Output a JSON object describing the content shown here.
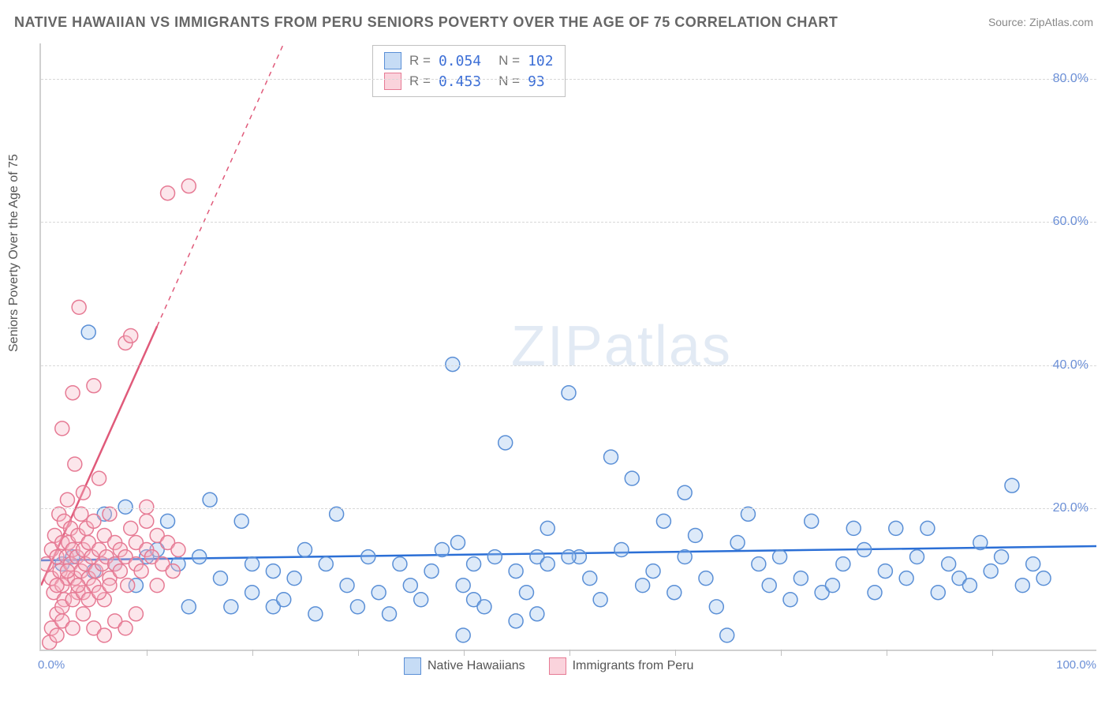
{
  "title": "NATIVE HAWAIIAN VS IMMIGRANTS FROM PERU SENIORS POVERTY OVER THE AGE OF 75 CORRELATION CHART",
  "source": "Source: ZipAtlas.com",
  "ylabel": "Seniors Poverty Over the Age of 75",
  "watermark_a": "ZIP",
  "watermark_b": "atlas",
  "chart": {
    "type": "scatter",
    "xlim": [
      0,
      100
    ],
    "ylim": [
      0,
      85
    ],
    "y_gridlines": [
      20,
      40,
      60,
      80
    ],
    "y_tick_labels": [
      "20.0%",
      "40.0%",
      "60.0%",
      "80.0%"
    ],
    "x_tick_labels": {
      "left": "0.0%",
      "right": "100.0%"
    },
    "x_tick_marks": [
      10,
      20,
      30,
      40,
      50,
      60,
      70,
      80,
      90
    ],
    "grid_color": "#d8d8d8",
    "axis_color": "#d0d0d0",
    "axis_tick_label_color": "#6b8fd6",
    "background_color": "#ffffff",
    "marker_radius": 9,
    "marker_stroke_width": 1.5,
    "marker_fill_opacity": 0.35,
    "regression_line_width": 2.5
  },
  "series": [
    {
      "key": "native_hawaiians",
      "label": "Native Hawaiians",
      "color_fill": "#9ec3ef",
      "color_stroke": "#5a8fd6",
      "R": "0.054",
      "N": "102",
      "regression": {
        "x1": 0,
        "y1": 12.5,
        "x2": 100,
        "y2": 14.5,
        "color": "#2b6fd6"
      },
      "points": [
        [
          2,
          12
        ],
        [
          3,
          13
        ],
        [
          4.5,
          44.5
        ],
        [
          5,
          11
        ],
        [
          6,
          19
        ],
        [
          7,
          12
        ],
        [
          8,
          20
        ],
        [
          9,
          9
        ],
        [
          10,
          13
        ],
        [
          11,
          14
        ],
        [
          12,
          18
        ],
        [
          13,
          12
        ],
        [
          14,
          6
        ],
        [
          15,
          13
        ],
        [
          16,
          21
        ],
        [
          17,
          10
        ],
        [
          18,
          6
        ],
        [
          19,
          18
        ],
        [
          20,
          8
        ],
        [
          20,
          12
        ],
        [
          22,
          6
        ],
        [
          22,
          11
        ],
        [
          23,
          7
        ],
        [
          24,
          10
        ],
        [
          25,
          14
        ],
        [
          26,
          5
        ],
        [
          27,
          12
        ],
        [
          28,
          19
        ],
        [
          29,
          9
        ],
        [
          30,
          6
        ],
        [
          31,
          13
        ],
        [
          32,
          8
        ],
        [
          33,
          5
        ],
        [
          34,
          12
        ],
        [
          35,
          9
        ],
        [
          36,
          7
        ],
        [
          37,
          11
        ],
        [
          38,
          14
        ],
        [
          39,
          40
        ],
        [
          40,
          2
        ],
        [
          40,
          9
        ],
        [
          41,
          7
        ],
        [
          41,
          12
        ],
        [
          42,
          6
        ],
        [
          43,
          13
        ],
        [
          44,
          29
        ],
        [
          45,
          4
        ],
        [
          45,
          11
        ],
        [
          46,
          8
        ],
        [
          47,
          5
        ],
        [
          47,
          13
        ],
        [
          48,
          12
        ],
        [
          48,
          17
        ],
        [
          50,
          36
        ],
        [
          51,
          13
        ],
        [
          52,
          10
        ],
        [
          53,
          7
        ],
        [
          54,
          27
        ],
        [
          55,
          14
        ],
        [
          56,
          24
        ],
        [
          57,
          9
        ],
        [
          58,
          11
        ],
        [
          59,
          18
        ],
        [
          60,
          8
        ],
        [
          61,
          13
        ],
        [
          61,
          22
        ],
        [
          62,
          16
        ],
        [
          63,
          10
        ],
        [
          64,
          6
        ],
        [
          65,
          2
        ],
        [
          66,
          15
        ],
        [
          67,
          19
        ],
        [
          68,
          12
        ],
        [
          69,
          9
        ],
        [
          70,
          13
        ],
        [
          71,
          7
        ],
        [
          72,
          10
        ],
        [
          73,
          18
        ],
        [
          74,
          8
        ],
        [
          75,
          9
        ],
        [
          76,
          12
        ],
        [
          77,
          17
        ],
        [
          78,
          14
        ],
        [
          79,
          8
        ],
        [
          80,
          11
        ],
        [
          81,
          17
        ],
        [
          82,
          10
        ],
        [
          83,
          13
        ],
        [
          84,
          17
        ],
        [
          85,
          8
        ],
        [
          86,
          12
        ],
        [
          87,
          10
        ],
        [
          88,
          9
        ],
        [
          89,
          15
        ],
        [
          90,
          11
        ],
        [
          91,
          13
        ],
        [
          92,
          23
        ],
        [
          93,
          9
        ],
        [
          94,
          12
        ],
        [
          95,
          10
        ],
        [
          39.5,
          15
        ],
        [
          50,
          13
        ]
      ]
    },
    {
      "key": "immigrants_peru",
      "label": "Immigrants from Peru",
      "color_fill": "#f6b8c5",
      "color_stroke": "#e67a94",
      "R": "0.453",
      "N": "93",
      "regression": {
        "x1": 0,
        "y1": 9,
        "x2": 23,
        "y2": 85,
        "color": "#e05a7a",
        "dashed_after_x": 11
      },
      "points": [
        [
          0.5,
          12
        ],
        [
          0.8,
          1
        ],
        [
          1,
          10
        ],
        [
          1,
          14
        ],
        [
          1.2,
          8
        ],
        [
          1.3,
          16
        ],
        [
          1.5,
          5
        ],
        [
          1.5,
          13
        ],
        [
          1.7,
          19
        ],
        [
          1.8,
          11
        ],
        [
          2,
          9
        ],
        [
          2,
          15
        ],
        [
          2,
          31
        ],
        [
          2.2,
          7
        ],
        [
          2.2,
          18
        ],
        [
          2.4,
          13
        ],
        [
          2.5,
          10
        ],
        [
          2.5,
          21
        ],
        [
          2.6,
          15
        ],
        [
          2.8,
          12
        ],
        [
          2.8,
          17
        ],
        [
          3,
          36
        ],
        [
          3,
          14
        ],
        [
          3.2,
          10
        ],
        [
          3.2,
          26
        ],
        [
          3.4,
          13
        ],
        [
          3.5,
          8
        ],
        [
          3.5,
          16
        ],
        [
          3.6,
          48
        ],
        [
          3.8,
          11
        ],
        [
          3.8,
          19
        ],
        [
          4,
          14
        ],
        [
          4,
          22
        ],
        [
          4.2,
          12
        ],
        [
          4.3,
          17
        ],
        [
          4.5,
          10
        ],
        [
          4.5,
          15
        ],
        [
          4.8,
          13
        ],
        [
          5,
          9
        ],
        [
          5,
          18
        ],
        [
          5,
          37
        ],
        [
          5.2,
          11
        ],
        [
          5.5,
          14
        ],
        [
          5.5,
          24
        ],
        [
          5.8,
          12
        ],
        [
          6,
          7
        ],
        [
          6,
          16
        ],
        [
          6.2,
          13
        ],
        [
          6.5,
          10
        ],
        [
          6.5,
          19
        ],
        [
          7,
          12
        ],
        [
          7,
          15
        ],
        [
          7.5,
          11
        ],
        [
          7.5,
          14
        ],
        [
          8,
          43
        ],
        [
          8,
          13
        ],
        [
          8.2,
          9
        ],
        [
          8.5,
          17
        ],
        [
          8.5,
          44
        ],
        [
          9,
          12
        ],
        [
          9,
          15
        ],
        [
          9.5,
          11
        ],
        [
          10,
          14
        ],
        [
          10,
          18
        ],
        [
          10,
          20
        ],
        [
          10.5,
          13
        ],
        [
          11,
          9
        ],
        [
          11,
          16
        ],
        [
          11.5,
          12
        ],
        [
          12,
          15
        ],
        [
          12,
          64
        ],
        [
          12.5,
          11
        ],
        [
          13,
          14
        ],
        [
          14,
          65
        ],
        [
          1,
          3
        ],
        [
          1.5,
          2
        ],
        [
          2,
          4
        ],
        [
          3,
          3
        ],
        [
          4,
          5
        ],
        [
          5,
          3
        ],
        [
          6,
          2
        ],
        [
          7,
          4
        ],
        [
          8,
          3
        ],
        [
          9,
          5
        ],
        [
          2,
          6
        ],
        [
          3,
          7
        ],
        [
          4,
          8
        ],
        [
          1.5,
          9
        ],
        [
          2.5,
          11
        ],
        [
          3.5,
          9
        ],
        [
          4.5,
          7
        ],
        [
          5.5,
          8
        ],
        [
          6.5,
          9
        ]
      ]
    }
  ],
  "stats_box": {
    "rows": [
      {
        "swatch_stroke": "#5a8fd6",
        "swatch_fill": "#c6dcf5",
        "r_label": "R =",
        "r_val": "0.054",
        "n_label": "N =",
        "n_val": "102"
      },
      {
        "swatch_stroke": "#e67a94",
        "swatch_fill": "#fad3dc",
        "r_label": "R =",
        "r_val": "0.453",
        "n_label": "N =",
        "n_val": " 93"
      }
    ]
  },
  "bottom_legend": [
    {
      "swatch_stroke": "#5a8fd6",
      "swatch_fill": "#c6dcf5",
      "label": "Native Hawaiians"
    },
    {
      "swatch_stroke": "#e67a94",
      "swatch_fill": "#fad3dc",
      "label": "Immigrants from Peru"
    }
  ]
}
